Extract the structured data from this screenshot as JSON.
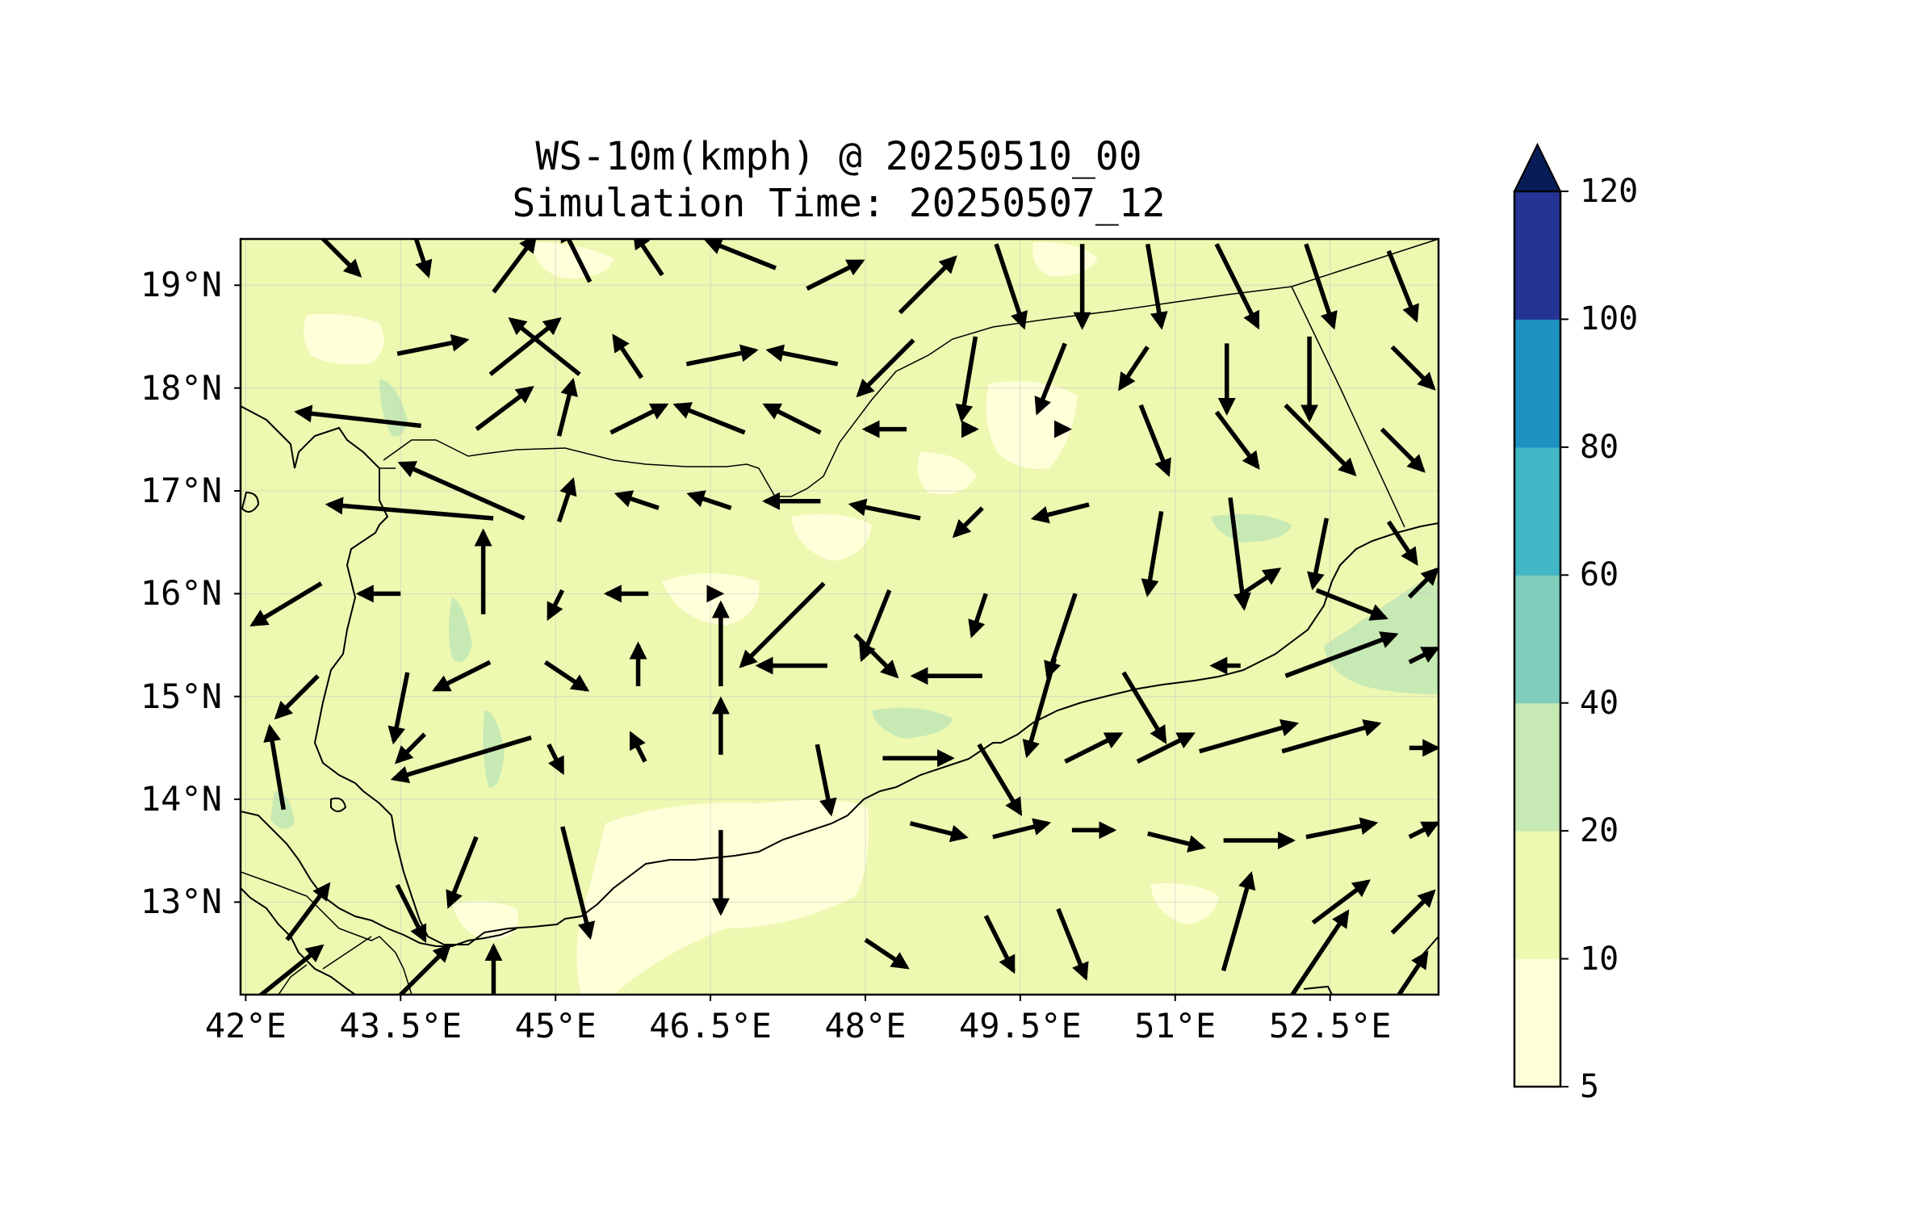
{
  "title": {
    "line1": "WS-10m(kmph) @ 20250510_00",
    "line2": "Simulation Time: 20250507_12"
  },
  "chart_data": {
    "type": "heatmap",
    "variable": "WS-10m(kmph)",
    "valid_time": "20250510_00",
    "simulation_time": "20250507_12",
    "lon_range": [
      41.95,
      53.55
    ],
    "lat_range": [
      12.1,
      19.45
    ],
    "grid": true,
    "x_ticks": [
      {
        "value": 42.0,
        "label": "42°E"
      },
      {
        "value": 43.5,
        "label": "43.5°E"
      },
      {
        "value": 45.0,
        "label": "45°E"
      },
      {
        "value": 46.5,
        "label": "46.5°E"
      },
      {
        "value": 48.0,
        "label": "48°E"
      },
      {
        "value": 49.5,
        "label": "49.5°E"
      },
      {
        "value": 51.0,
        "label": "51°E"
      },
      {
        "value": 52.5,
        "label": "52.5°E"
      }
    ],
    "y_ticks": [
      {
        "value": 19,
        "label": "19°N"
      },
      {
        "value": 18,
        "label": "18°N"
      },
      {
        "value": 17,
        "label": "17°N"
      },
      {
        "value": 16,
        "label": "16°N"
      },
      {
        "value": 15,
        "label": "15°N"
      },
      {
        "value": 14,
        "label": "14°N"
      },
      {
        "value": 13,
        "label": "13°N"
      }
    ],
    "colorbar": {
      "levels": [
        5,
        10,
        20,
        40,
        60,
        80,
        100,
        120
      ],
      "labels": [
        "5",
        "10",
        "20",
        "40",
        "60",
        "80",
        "100",
        "120"
      ],
      "colors": [
        "#ffffd9",
        "#edf8b1",
        "#c7e9b4",
        "#7fcdbb",
        "#41b6c4",
        "#1d91c0",
        "#253494"
      ],
      "extend_color": "#081d58",
      "extend": "max"
    },
    "background_color": "#edf8b1",
    "wind_vectors": [
      {
        "lon": 42.9,
        "lat": 19.3,
        "u": 3,
        "v": -3
      },
      {
        "lon": 43.7,
        "lat": 19.3,
        "u": 1,
        "v": -3
      },
      {
        "lon": 44.6,
        "lat": 19.2,
        "u": 3,
        "v": 4
      },
      {
        "lon": 45.2,
        "lat": 19.3,
        "u": -2,
        "v": 4
      },
      {
        "lon": 45.9,
        "lat": 19.3,
        "u": -2,
        "v": 3
      },
      {
        "lon": 46.8,
        "lat": 19.3,
        "u": -5,
        "v": 2
      },
      {
        "lon": 47.7,
        "lat": 19.1,
        "u": 4,
        "v": 2
      },
      {
        "lon": 48.6,
        "lat": 19.0,
        "u": 4,
        "v": 4
      },
      {
        "lon": 49.4,
        "lat": 19.0,
        "u": 2,
        "v": -6
      },
      {
        "lon": 50.1,
        "lat": 19.0,
        "u": 0,
        "v": -6
      },
      {
        "lon": 50.8,
        "lat": 19.0,
        "u": 1,
        "v": -6
      },
      {
        "lon": 51.6,
        "lat": 19.0,
        "u": 3,
        "v": -6
      },
      {
        "lon": 52.4,
        "lat": 19.0,
        "u": 2,
        "v": -6
      },
      {
        "lon": 53.2,
        "lat": 19.0,
        "u": 2,
        "v": -5
      },
      {
        "lon": 43.8,
        "lat": 18.4,
        "u": 5,
        "v": 1
      },
      {
        "lon": 44.7,
        "lat": 18.4,
        "u": 5,
        "v": 4
      },
      {
        "lon": 44.9,
        "lat": 18.4,
        "u": -5,
        "v": 4
      },
      {
        "lon": 45.7,
        "lat": 18.3,
        "u": -2,
        "v": 3
      },
      {
        "lon": 46.6,
        "lat": 18.3,
        "u": 5,
        "v": 1
      },
      {
        "lon": 47.4,
        "lat": 18.3,
        "u": -5,
        "v": 1
      },
      {
        "lon": 48.2,
        "lat": 18.2,
        "u": -4,
        "v": -4
      },
      {
        "lon": 49.0,
        "lat": 18.1,
        "u": -1,
        "v": -6
      },
      {
        "lon": 49.8,
        "lat": 18.1,
        "u": -2,
        "v": -5
      },
      {
        "lon": 50.6,
        "lat": 18.2,
        "u": -2,
        "v": -3
      },
      {
        "lon": 51.5,
        "lat": 18.1,
        "u": 0,
        "v": -5
      },
      {
        "lon": 52.3,
        "lat": 18.1,
        "u": 0,
        "v": -6
      },
      {
        "lon": 53.3,
        "lat": 18.2,
        "u": 3,
        "v": -3
      },
      {
        "lon": 43.1,
        "lat": 17.7,
        "u": -9,
        "v": 1
      },
      {
        "lon": 44.5,
        "lat": 17.8,
        "u": 4,
        "v": 3
      },
      {
        "lon": 45.1,
        "lat": 17.8,
        "u": 1,
        "v": 4
      },
      {
        "lon": 45.8,
        "lat": 17.7,
        "u": 4,
        "v": 2
      },
      {
        "lon": 46.5,
        "lat": 17.7,
        "u": -5,
        "v": 2
      },
      {
        "lon": 47.3,
        "lat": 17.7,
        "u": -4,
        "v": 2
      },
      {
        "lon": 48.2,
        "lat": 17.6,
        "u": -3,
        "v": 0
      },
      {
        "lon": 49.0,
        "lat": 17.6,
        "u": 1,
        "v": 0
      },
      {
        "lon": 49.9,
        "lat": 17.6,
        "u": 1,
        "v": 0
      },
      {
        "lon": 50.8,
        "lat": 17.5,
        "u": 2,
        "v": -5
      },
      {
        "lon": 51.6,
        "lat": 17.5,
        "u": 3,
        "v": -4
      },
      {
        "lon": 52.4,
        "lat": 17.5,
        "u": 5,
        "v": -5
      },
      {
        "lon": 53.2,
        "lat": 17.4,
        "u": 3,
        "v": -3
      },
      {
        "lon": 43.6,
        "lat": 16.8,
        "u": -12,
        "v": 1
      },
      {
        "lon": 44.1,
        "lat": 17.0,
        "u": -9,
        "v": 4
      },
      {
        "lon": 45.1,
        "lat": 16.9,
        "u": 1,
        "v": 3
      },
      {
        "lon": 45.8,
        "lat": 16.9,
        "u": -3,
        "v": 1
      },
      {
        "lon": 46.5,
        "lat": 16.9,
        "u": -3,
        "v": 1
      },
      {
        "lon": 47.3,
        "lat": 16.9,
        "u": -4,
        "v": 0
      },
      {
        "lon": 48.2,
        "lat": 16.8,
        "u": -5,
        "v": 1
      },
      {
        "lon": 49.0,
        "lat": 16.7,
        "u": -2,
        "v": -2
      },
      {
        "lon": 49.9,
        "lat": 16.8,
        "u": -4,
        "v": -1
      },
      {
        "lon": 50.8,
        "lat": 16.4,
        "u": -1,
        "v": -6
      },
      {
        "lon": 51.6,
        "lat": 16.4,
        "u": 1,
        "v": -8
      },
      {
        "lon": 52.4,
        "lat": 16.4,
        "u": -1,
        "v": -5
      },
      {
        "lon": 53.2,
        "lat": 16.5,
        "u": 2,
        "v": -3
      },
      {
        "lon": 42.4,
        "lat": 15.9,
        "u": -5,
        "v": -3
      },
      {
        "lon": 43.3,
        "lat": 16.0,
        "u": -3,
        "v": 0
      },
      {
        "lon": 44.3,
        "lat": 16.2,
        "u": 0,
        "v": 6
      },
      {
        "lon": 45.0,
        "lat": 15.9,
        "u": -1,
        "v": -2
      },
      {
        "lon": 45.7,
        "lat": 16.0,
        "u": -3,
        "v": 0
      },
      {
        "lon": 46.6,
        "lat": 16.0,
        "u": 0,
        "v": 0
      },
      {
        "lon": 47.2,
        "lat": 15.7,
        "u": -6,
        "v": -6
      },
      {
        "lon": 48.1,
        "lat": 15.7,
        "u": -2,
        "v": -5
      },
      {
        "lon": 49.1,
        "lat": 15.8,
        "u": -1,
        "v": -3
      },
      {
        "lon": 49.9,
        "lat": 15.6,
        "u": -2,
        "v": -6
      },
      {
        "lon": 51.8,
        "lat": 16.1,
        "u": 3,
        "v": 2
      },
      {
        "lon": 52.7,
        "lat": 15.9,
        "u": 5,
        "v": -2
      },
      {
        "lon": 53.4,
        "lat": 16.1,
        "u": 2,
        "v": 2
      },
      {
        "lon": 42.5,
        "lat": 15.0,
        "u": -3,
        "v": -3
      },
      {
        "lon": 43.5,
        "lat": 14.9,
        "u": -1,
        "v": -5
      },
      {
        "lon": 44.1,
        "lat": 15.2,
        "u": -4,
        "v": -2
      },
      {
        "lon": 45.1,
        "lat": 15.2,
        "u": 3,
        "v": -2
      },
      {
        "lon": 45.8,
        "lat": 15.3,
        "u": 0,
        "v": 3
      },
      {
        "lon": 46.6,
        "lat": 15.5,
        "u": 0,
        "v": 6
      },
      {
        "lon": 47.3,
        "lat": 15.3,
        "u": -5,
        "v": 0
      },
      {
        "lon": 48.1,
        "lat": 15.4,
        "u": 3,
        "v": -3
      },
      {
        "lon": 48.8,
        "lat": 15.2,
        "u": -5,
        "v": 0
      },
      {
        "lon": 49.7,
        "lat": 14.9,
        "u": -2,
        "v": -7
      },
      {
        "lon": 50.7,
        "lat": 14.9,
        "u": 3,
        "v": -5
      },
      {
        "lon": 51.5,
        "lat": 15.3,
        "u": -2,
        "v": 0
      },
      {
        "lon": 52.6,
        "lat": 15.4,
        "u": 8,
        "v": 3
      },
      {
        "lon": 53.4,
        "lat": 15.4,
        "u": 2,
        "v": 1
      },
      {
        "lon": 42.3,
        "lat": 14.3,
        "u": -1,
        "v": 6
      },
      {
        "lon": 43.6,
        "lat": 14.5,
        "u": -2,
        "v": -2
      },
      {
        "lon": 44.1,
        "lat": 14.4,
        "u": -10,
        "v": -3
      },
      {
        "lon": 45.0,
        "lat": 14.4,
        "u": 1,
        "v": -2
      },
      {
        "lon": 45.8,
        "lat": 14.5,
        "u": -1,
        "v": 2
      },
      {
        "lon": 46.6,
        "lat": 14.7,
        "u": 0,
        "v": 4
      },
      {
        "lon": 47.6,
        "lat": 14.2,
        "u": 1,
        "v": -5
      },
      {
        "lon": 48.5,
        "lat": 14.4,
        "u": 5,
        "v": 0
      },
      {
        "lon": 49.3,
        "lat": 14.2,
        "u": 3,
        "v": -5
      },
      {
        "lon": 50.2,
        "lat": 14.5,
        "u": 4,
        "v": 2
      },
      {
        "lon": 50.9,
        "lat": 14.5,
        "u": 4,
        "v": 2
      },
      {
        "lon": 51.7,
        "lat": 14.6,
        "u": 7,
        "v": 2
      },
      {
        "lon": 52.5,
        "lat": 14.6,
        "u": 7,
        "v": 2
      },
      {
        "lon": 53.4,
        "lat": 14.5,
        "u": 2,
        "v": 0
      },
      {
        "lon": 44.1,
        "lat": 13.3,
        "u": -2,
        "v": -5
      },
      {
        "lon": 45.2,
        "lat": 13.2,
        "u": 2,
        "v": -8
      },
      {
        "lon": 46.6,
        "lat": 13.3,
        "u": 0,
        "v": -6
      },
      {
        "lon": 48.7,
        "lat": 13.7,
        "u": 4,
        "v": -1
      },
      {
        "lon": 49.5,
        "lat": 13.7,
        "u": 4,
        "v": 1
      },
      {
        "lon": 50.2,
        "lat": 13.7,
        "u": 3,
        "v": 0
      },
      {
        "lon": 51.0,
        "lat": 13.6,
        "u": 4,
        "v": -1
      },
      {
        "lon": 51.8,
        "lat": 13.6,
        "u": 5,
        "v": 0
      },
      {
        "lon": 52.6,
        "lat": 13.7,
        "u": 5,
        "v": 1
      },
      {
        "lon": 53.4,
        "lat": 13.7,
        "u": 2,
        "v": 1
      },
      {
        "lon": 42.6,
        "lat": 12.9,
        "u": 3,
        "v": 4
      },
      {
        "lon": 43.6,
        "lat": 12.9,
        "u": 2,
        "v": -4
      },
      {
        "lon": 51.6,
        "lat": 12.8,
        "u": 2,
        "v": 7
      },
      {
        "lon": 52.6,
        "lat": 13.0,
        "u": 4,
        "v": 3
      },
      {
        "lon": 53.3,
        "lat": 12.9,
        "u": 3,
        "v": 3
      },
      {
        "lon": 42.4,
        "lat": 12.3,
        "u": 5,
        "v": 4
      },
      {
        "lon": 43.7,
        "lat": 12.3,
        "u": 4,
        "v": 4
      },
      {
        "lon": 44.4,
        "lat": 12.3,
        "u": 0,
        "v": 4
      },
      {
        "lon": 48.2,
        "lat": 12.5,
        "u": 3,
        "v": -2
      },
      {
        "lon": 49.3,
        "lat": 12.6,
        "u": 2,
        "v": -4
      },
      {
        "lon": 50.0,
        "lat": 12.6,
        "u": 2,
        "v": -5
      },
      {
        "lon": 52.4,
        "lat": 12.5,
        "u": 4,
        "v": 6
      },
      {
        "lon": 53.3,
        "lat": 12.3,
        "u": 2,
        "v": 3
      }
    ]
  }
}
